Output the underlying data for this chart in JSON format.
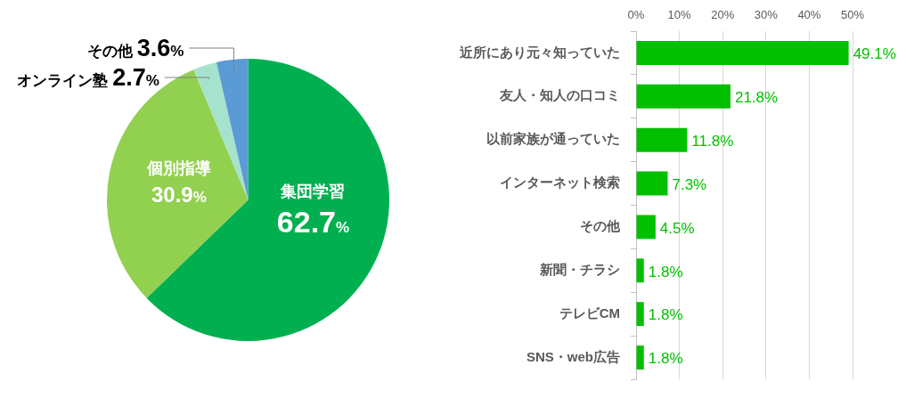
{
  "chart_data": [
    {
      "type": "pie",
      "categories": [
        "集団学習",
        "個別指導",
        "オンライン塾",
        "その他"
      ],
      "values": [
        62.7,
        30.9,
        2.7,
        3.6
      ],
      "colors": [
        "#00b050",
        "#92d050",
        "#a6e3cc",
        "#5b9bd5"
      ],
      "value_labels": [
        "62.7%",
        "30.9%",
        "2.7%",
        "3.6%"
      ]
    },
    {
      "type": "bar",
      "orientation": "horizontal",
      "categories": [
        "近所にあり元々知っていた",
        "友人・知人の口コミ",
        "以前家族が通っていた",
        "インターネット検索",
        "その他",
        "新聞・チラシ",
        "テレビCM",
        "SNS・web広告"
      ],
      "values": [
        49.1,
        21.8,
        11.8,
        7.3,
        4.5,
        1.8,
        1.8,
        1.8
      ],
      "color": "#00c000",
      "value_labels": [
        "49.1%",
        "21.8%",
        "11.8%",
        "7.3%",
        "4.5%",
        "1.8%",
        "1.8%",
        "1.8%"
      ],
      "xlim": [
        0,
        50
      ],
      "xticks": [
        {
          "value": 0,
          "label": "0%"
        },
        {
          "value": 10,
          "label": "10%"
        },
        {
          "value": 20,
          "label": "20%"
        },
        {
          "value": 30,
          "label": "30%"
        },
        {
          "value": 40,
          "label": "40%"
        },
        {
          "value": 50,
          "label": "50%"
        }
      ],
      "grid": "x"
    }
  ]
}
